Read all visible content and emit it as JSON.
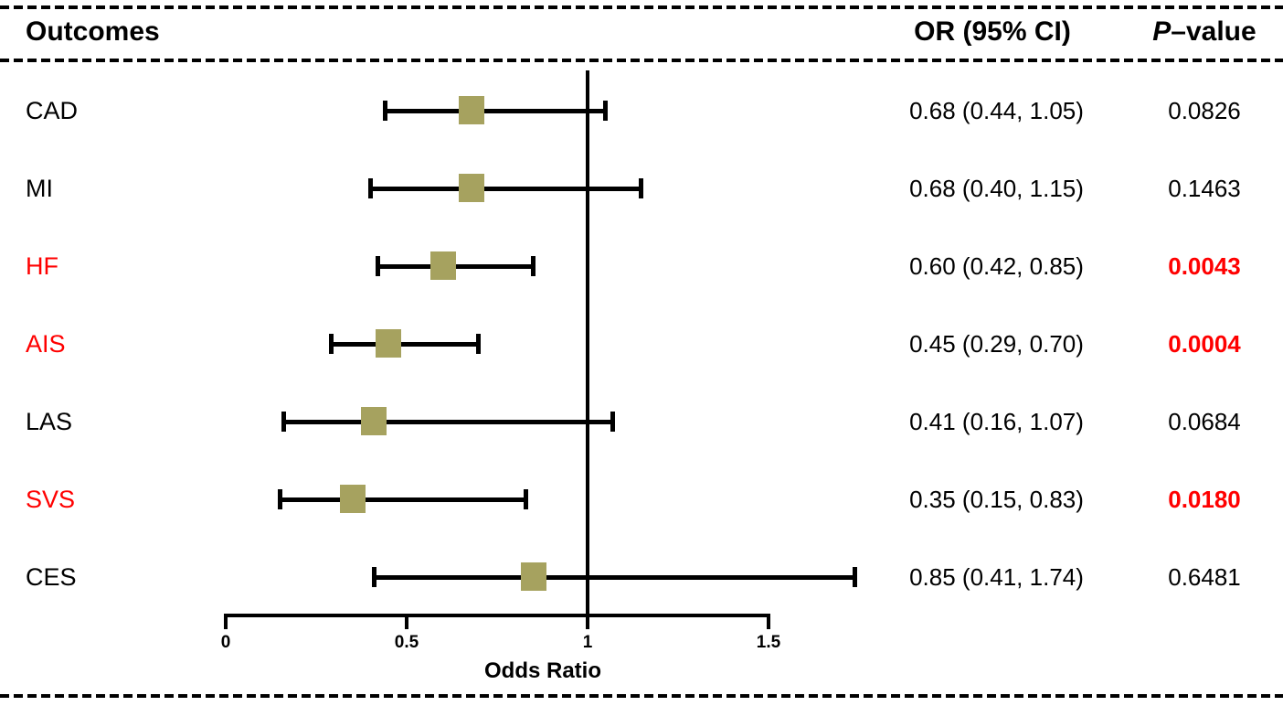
{
  "header": {
    "outcomes_label": "Outcomes",
    "or_ci_label": "OR (95% CI)",
    "p_value_label_prefix": "P",
    "p_value_label_suffix": "–value"
  },
  "chart_data": {
    "type": "forest",
    "xlabel": "Odds Ratio",
    "xlim": [
      0,
      1.5
    ],
    "x_ticks": [
      0,
      0.5,
      1,
      1.5
    ],
    "x_tick_labels": [
      "0",
      "0.5",
      "1",
      "1.5"
    ],
    "reference_line": 1,
    "grid": false,
    "marker_color": "#a6a25f",
    "highlight_color": "#ff0000",
    "rows": [
      {
        "label": "CAD",
        "or": 0.68,
        "ci_low": 0.44,
        "ci_high": 1.05,
        "or_ci_text": "0.68 (0.44, 1.05)",
        "p_text": "0.0826",
        "significant": false
      },
      {
        "label": "MI",
        "or": 0.68,
        "ci_low": 0.4,
        "ci_high": 1.15,
        "or_ci_text": "0.68 (0.40, 1.15)",
        "p_text": "0.1463",
        "significant": false
      },
      {
        "label": "HF",
        "or": 0.6,
        "ci_low": 0.42,
        "ci_high": 0.85,
        "or_ci_text": "0.60 (0.42, 0.85)",
        "p_text": "0.0043",
        "significant": true
      },
      {
        "label": "AIS",
        "or": 0.45,
        "ci_low": 0.29,
        "ci_high": 0.7,
        "or_ci_text": "0.45 (0.29, 0.70)",
        "p_text": "0.0004",
        "significant": true
      },
      {
        "label": "LAS",
        "or": 0.41,
        "ci_low": 0.16,
        "ci_high": 1.07,
        "or_ci_text": "0.41 (0.16, 1.07)",
        "p_text": "0.0684",
        "significant": false
      },
      {
        "label": "SVS",
        "or": 0.35,
        "ci_low": 0.15,
        "ci_high": 0.83,
        "or_ci_text": "0.35 (0.15, 0.83)",
        "p_text": "0.0180",
        "significant": true
      },
      {
        "label": "CES",
        "or": 0.85,
        "ci_low": 0.41,
        "ci_high": 1.74,
        "or_ci_text": "0.85 (0.41, 1.74)",
        "p_text": "0.6481",
        "significant": false
      }
    ]
  }
}
